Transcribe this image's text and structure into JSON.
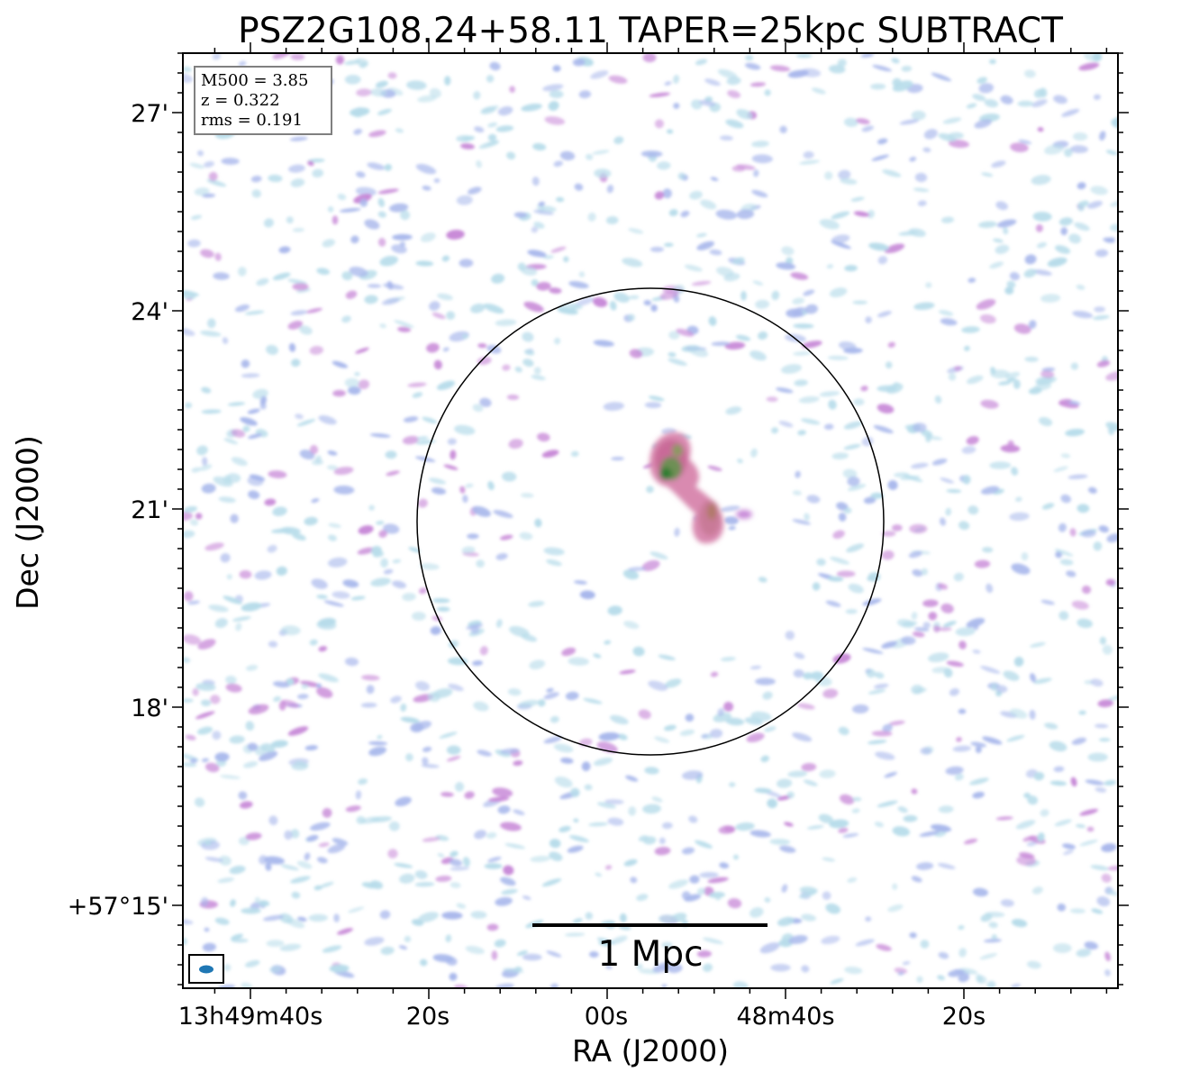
{
  "title": "PSZ2G108.24+58.11 TAPER=25kpc SUBTRACT",
  "xlabel": "RA (J2000)",
  "ylabel": "Dec (J2000)",
  "ra_ticks": [
    "13h49m40s",
    "20s",
    "00s",
    "48m40s",
    "20s"
  ],
  "dec_ticks": [
    "27'",
    "24'",
    "21'",
    "18'",
    "+57°15'"
  ],
  "info_box": {
    "lines": [
      "M500 = 3.85",
      "z = 0.322",
      "rms = 0.191"
    ]
  },
  "scale_bar": {
    "label": "1 Mpc"
  },
  "colors": {
    "noise_light": "#b7dcea",
    "noise_mid": "#a9b8ec",
    "noise_strong": "#c88ad8",
    "source_pink": "#d87aa8",
    "source_green": "#2e7d32",
    "beam": "#1f77b4"
  },
  "icons": {
    "beam": "beam-ellipse-icon",
    "circle": "r500-circle"
  }
}
